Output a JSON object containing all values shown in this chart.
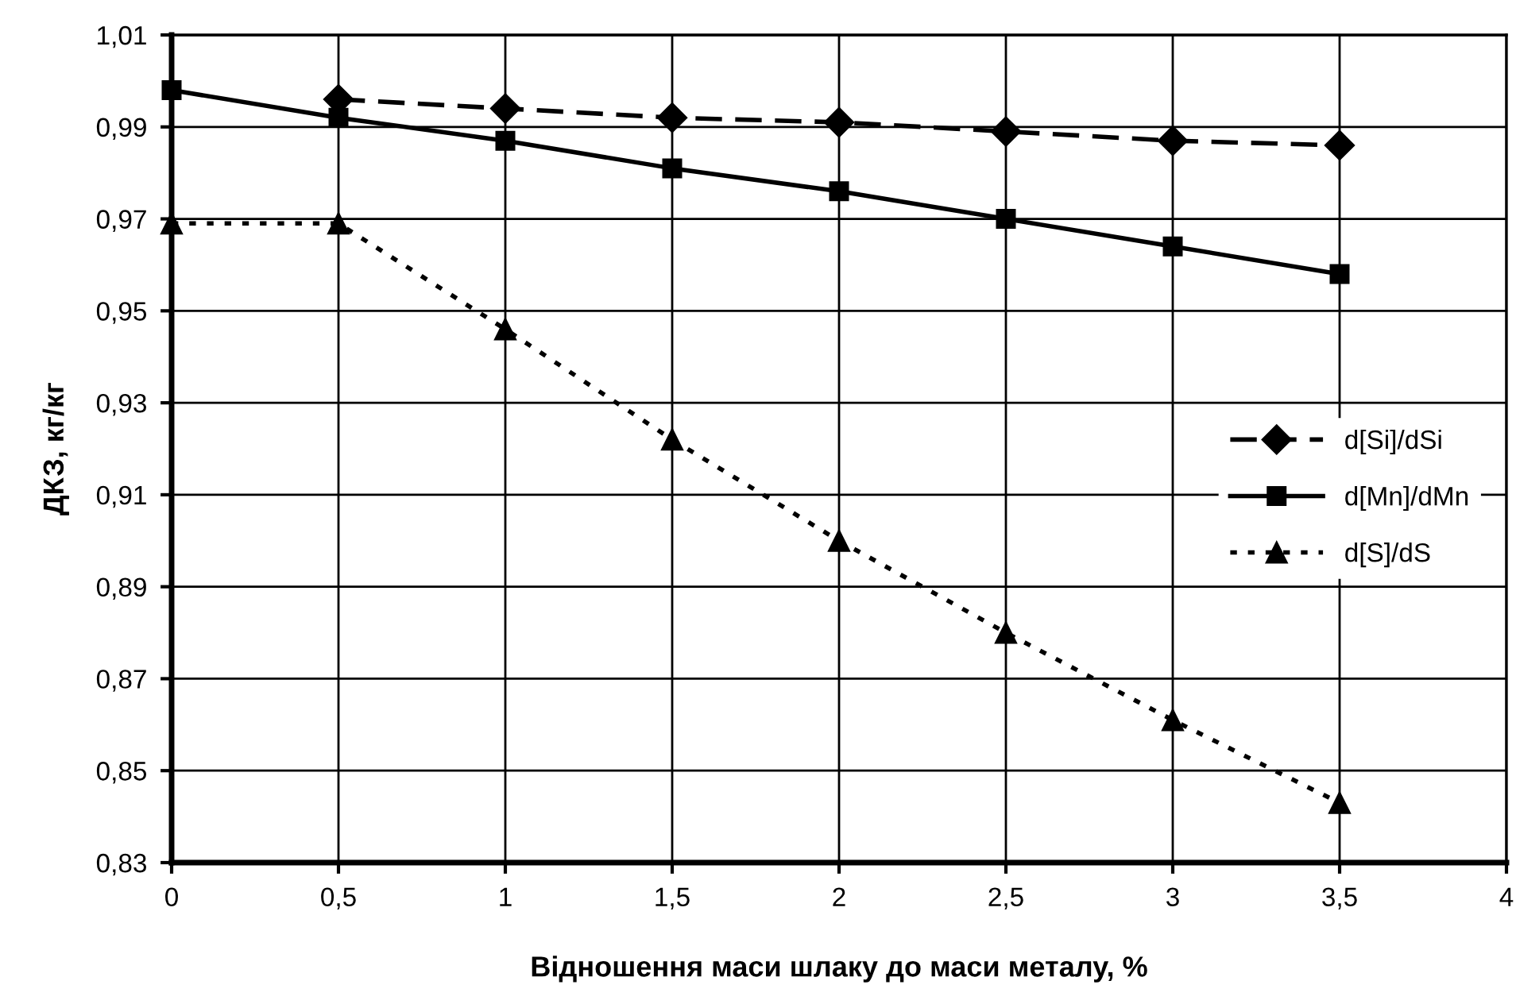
{
  "chart_data": {
    "type": "line",
    "xlabel": "Відношення маси шлаку до маси металу, %",
    "ylabel": "ДКЗ, кг/кг",
    "x": [
      0,
      0.5,
      1,
      1.5,
      2,
      2.5,
      3,
      3.5
    ],
    "series": [
      {
        "name": "d[Si]/dSi",
        "color": "#000000",
        "marker": "diamond",
        "line_style": "dashed",
        "values": [
          null,
          0.996,
          0.994,
          0.992,
          0.991,
          0.989,
          0.987,
          0.986
        ]
      },
      {
        "name": "d[Mn]/dMn",
        "color": "#000000",
        "marker": "square",
        "line_style": "solid",
        "values": [
          0.998,
          0.992,
          0.987,
          0.981,
          0.976,
          0.97,
          0.964,
          0.958
        ]
      },
      {
        "name": "d[S]/dS",
        "color": "#000000",
        "marker": "triangle",
        "line_style": "dotted",
        "values": [
          0.969,
          0.969,
          0.946,
          0.922,
          0.9,
          0.88,
          0.861,
          0.843
        ]
      }
    ],
    "xlim": [
      0,
      4
    ],
    "xticks": [
      0,
      {
        "value": 0.5,
        "label": "0,5"
      },
      1,
      {
        "value": 1.5,
        "label": "1,5"
      },
      2,
      {
        "value": 2.5,
        "label": "2,5"
      },
      3,
      {
        "value": 3.5,
        "label": "3,5"
      },
      4
    ],
    "ylim": [
      0.83,
      1.01
    ],
    "yticks": [
      {
        "value": 0.83,
        "label": "0,83"
      },
      {
        "value": 0.85,
        "label": "0,85"
      },
      {
        "value": 0.87,
        "label": "0,87"
      },
      {
        "value": 0.89,
        "label": "0,89"
      },
      {
        "value": 0.91,
        "label": "0,91"
      },
      {
        "value": 0.93,
        "label": "0,93"
      },
      {
        "value": 0.95,
        "label": "0,95"
      },
      {
        "value": 0.97,
        "label": "0,97"
      },
      {
        "value": 0.99,
        "label": "0,99"
      },
      {
        "value": 1.01,
        "label": "1,01"
      }
    ],
    "grid": true,
    "legend": "right"
  }
}
